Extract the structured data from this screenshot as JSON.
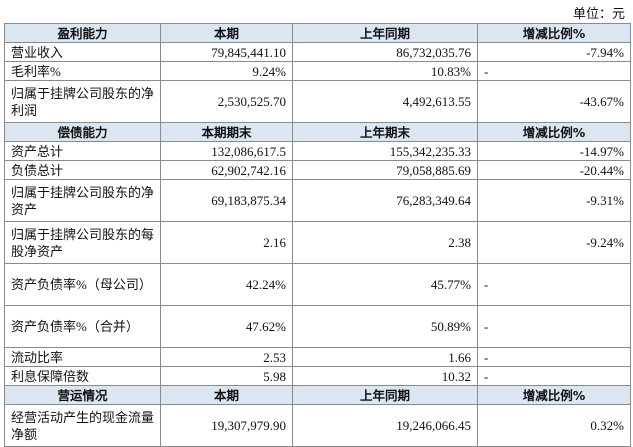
{
  "unit": "单位：元",
  "sections": [
    {
      "header": [
        "盈利能力",
        "本期",
        "上年同期",
        "增减比例%"
      ],
      "rows": [
        [
          "营业收入",
          "79,845,441.10",
          "86,732,035.76",
          "-7.94%"
        ],
        [
          "毛利率%",
          "9.24%",
          "10.83%",
          "-"
        ],
        [
          "归属于挂牌公司股东的净利润",
          "2,530,525.70",
          "4,492,613.55",
          "-43.67%"
        ]
      ]
    },
    {
      "header": [
        "偿债能力",
        "本期期末",
        "上年期末",
        "增减比例%"
      ],
      "rows": [
        [
          "资产总计",
          "132,086,617.5",
          "155,342,235.33",
          "-14.97%"
        ],
        [
          "负债总计",
          "62,902,742.16",
          "79,058,885.69",
          "-20.44%"
        ],
        [
          "归属于挂牌公司股东的净资产",
          "69,183,875.34",
          "76,283,349.64",
          "-9.31%"
        ],
        [
          "归属于挂牌公司股东的每股净资产",
          "2.16",
          "2.38",
          "-9.24%"
        ],
        [
          "资产负债率%（母公司）",
          "42.24%",
          "45.77%",
          "-"
        ],
        [
          "资产负债率%（合并）",
          "47.62%",
          "50.89%",
          "-"
        ],
        [
          "流动比率",
          "2.53",
          "1.66",
          "-"
        ],
        [
          "利息保障倍数",
          "5.98",
          "10.32",
          "-"
        ]
      ]
    },
    {
      "header": [
        "营运情况",
        "本期",
        "上年同期",
        "增减比例%"
      ],
      "rows": [
        [
          "经营活动产生的现金流量净额",
          "19,307,979.90",
          "19,246,066.45",
          "0.32%"
        ]
      ]
    }
  ]
}
